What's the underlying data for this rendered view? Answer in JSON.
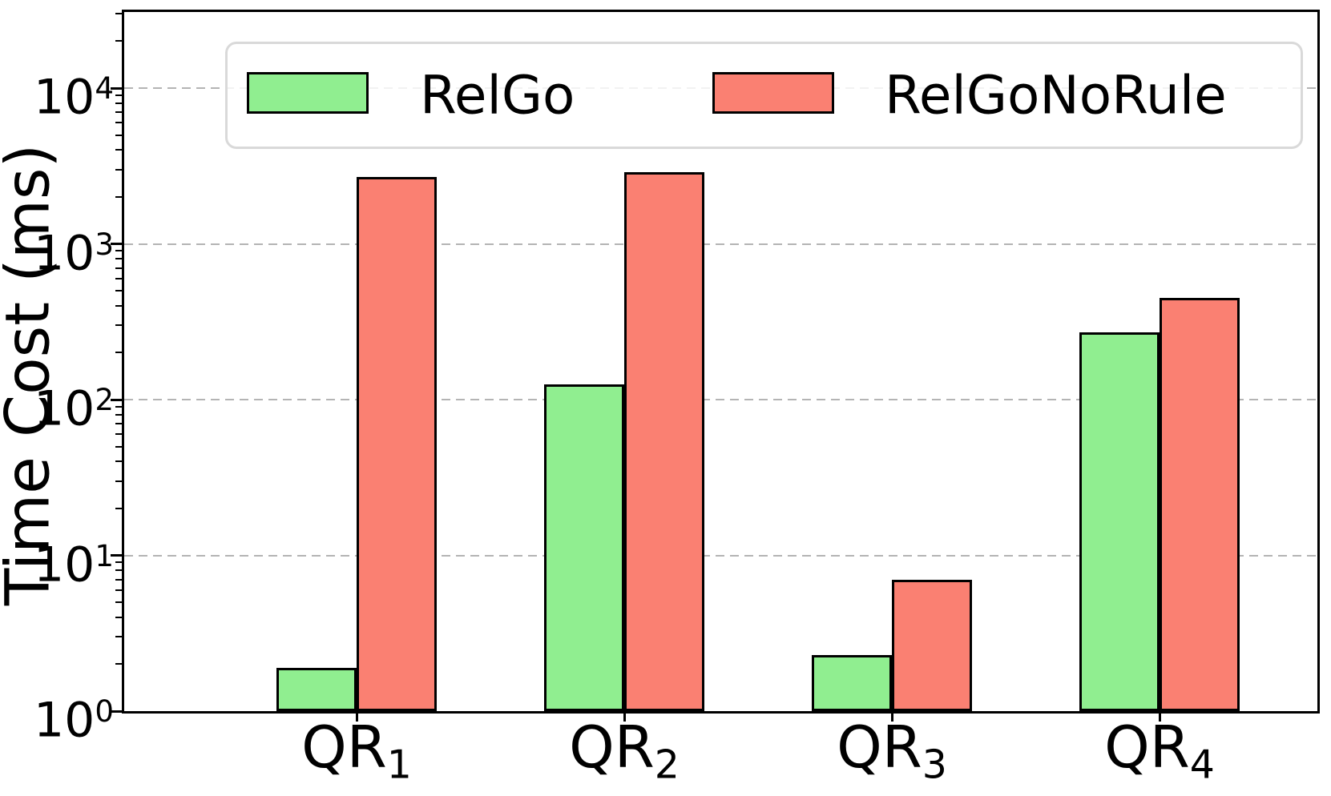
{
  "chart_data": {
    "type": "bar",
    "title": "",
    "xlabel": "",
    "ylabel": "Time Cost (ms)",
    "yscale": "log",
    "ylim": [
      1,
      30800
    ],
    "y_tick_exponents": [
      0,
      1,
      2,
      3,
      4
    ],
    "grid": "horizontal dashed at each decade",
    "legend_position": "upper center",
    "categories": [
      {
        "base": "QR",
        "sub": "1"
      },
      {
        "base": "QR",
        "sub": "2"
      },
      {
        "base": "QR",
        "sub": "3"
      },
      {
        "base": "QR",
        "sub": "4"
      }
    ],
    "series": [
      {
        "name": "RelGo",
        "color": "#90EE90",
        "values": [
          1.9,
          125,
          2.3,
          270
        ]
      },
      {
        "name": "RelGoNoRule",
        "color": "#FA8072",
        "values": [
          2700,
          2900,
          7,
          450
        ]
      }
    ],
    "colors": {
      "bar_edge": "#000000",
      "grid": "#b4b4b4",
      "spine": "#000000",
      "legend_border": "#d9d9d9"
    }
  }
}
